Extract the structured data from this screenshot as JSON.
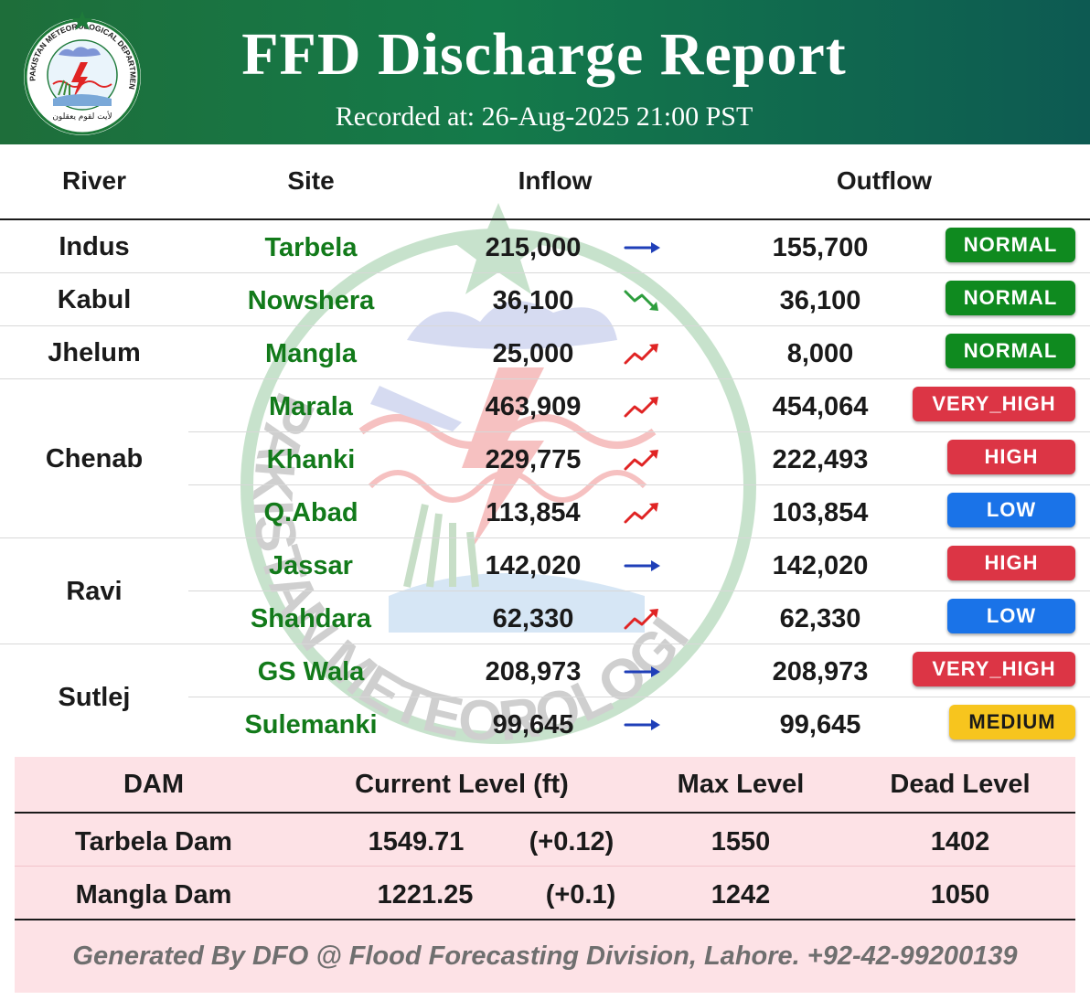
{
  "header": {
    "title": "FFD Discharge Report",
    "recorded": "Recorded at: 26-Aug-2025 21:00 PST",
    "logo_text": "PAKISTAN METEOROLOGICAL DEPARTMENT"
  },
  "columns": {
    "river": "River",
    "site": "Site",
    "inflow": "Inflow",
    "outflow": "Outflow"
  },
  "rivers": [
    {
      "name": "Indus"
    },
    {
      "name": "Kabul"
    },
    {
      "name": "Jhelum"
    },
    {
      "name": "Chenab"
    },
    {
      "name": "Ravi"
    },
    {
      "name": "Sutlej"
    }
  ],
  "sites": [
    {
      "site": "Tarbela",
      "inflow": "215,000",
      "trend": "steady",
      "outflow": "155,700",
      "status": "NORMAL"
    },
    {
      "site": "Nowshera",
      "inflow": "36,100",
      "trend": "falling",
      "outflow": "36,100",
      "status": "NORMAL"
    },
    {
      "site": "Mangla",
      "inflow": "25,000",
      "trend": "rising",
      "outflow": "8,000",
      "status": "NORMAL"
    },
    {
      "site": "Marala",
      "inflow": "463,909",
      "trend": "rising",
      "outflow": "454,064",
      "status": "VERY_HIGH"
    },
    {
      "site": "Khanki",
      "inflow": "229,775",
      "trend": "rising",
      "outflow": "222,493",
      "status": "HIGH"
    },
    {
      "site": "Q.Abad",
      "inflow": "113,854",
      "trend": "rising",
      "outflow": "103,854",
      "status": "LOW"
    },
    {
      "site": "Jassar",
      "inflow": "142,020",
      "trend": "steady",
      "outflow": "142,020",
      "status": "HIGH"
    },
    {
      "site": "Shahdara",
      "inflow": "62,330",
      "trend": "rising",
      "outflow": "62,330",
      "status": "LOW"
    },
    {
      "site": "GS Wala",
      "inflow": "208,973",
      "trend": "steady",
      "outflow": "208,973",
      "status": "VERY_HIGH"
    },
    {
      "site": "Sulemanki",
      "inflow": "99,645",
      "trend": "steady",
      "outflow": "99,645",
      "status": "MEDIUM"
    }
  ],
  "status_colors": {
    "NORMAL": "#0f8a1f",
    "VERY_HIGH": "#dc3545",
    "HIGH": "#dc3545",
    "LOW": "#1a73e8",
    "MEDIUM": "#f7c51e"
  },
  "trend_colors": {
    "steady": "#1f3fb8",
    "falling": "#2e9e3e",
    "rising": "#e02424"
  },
  "dam_table": {
    "headers": {
      "dam": "DAM",
      "current": "Current Level (ft)",
      "max": "Max Level",
      "dead": "Dead Level"
    },
    "rows": [
      {
        "dam": "Tarbela Dam",
        "current": "1549.71",
        "change": "(+0.12)",
        "max": "1550",
        "dead": "1402"
      },
      {
        "dam": "Mangla Dam",
        "current": "1221.25",
        "change": "(+0.1)",
        "max": "1242",
        "dead": "1050"
      }
    ]
  },
  "footer": "Generated By DFO @ Flood Forecasting Division, Lahore. +92-42-99200139"
}
